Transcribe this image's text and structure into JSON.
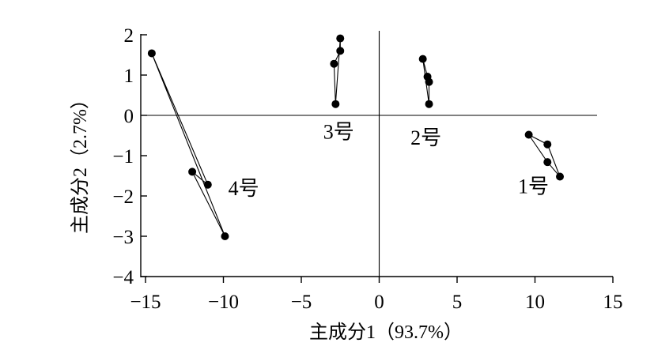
{
  "chart_data": {
    "type": "scatter",
    "xlabel": "主成分1（93.7%）",
    "ylabel": "主成分2（2.7%）",
    "xlim": [
      -16,
      15
    ],
    "ylim": [
      -4,
      2
    ],
    "xticks": [
      -15,
      -10,
      -5,
      0,
      5,
      10,
      15
    ],
    "yticks": [
      2,
      1,
      0,
      -1,
      -2,
      -3,
      -4
    ],
    "xtick_labels": [
      "−15",
      "−10",
      "−5",
      "0",
      "5",
      "10",
      "15"
    ],
    "ytick_labels": [
      "2",
      "1",
      "0",
      "−1",
      "−2",
      "−3",
      "−4"
    ],
    "zero_lines": true,
    "grid": false,
    "groups": [
      {
        "label": "1号",
        "label_pos": [
          9.9,
          -1.75
        ],
        "points": [
          [
            9.6,
            -0.48
          ],
          [
            10.8,
            -0.72
          ],
          [
            11.6,
            -1.52
          ],
          [
            10.8,
            -1.16
          ]
        ]
      },
      {
        "label": "2号",
        "label_pos": [
          3.0,
          -0.55
        ],
        "points": [
          [
            2.8,
            1.4
          ],
          [
            3.1,
            0.96
          ],
          [
            3.2,
            0.83
          ],
          [
            3.2,
            0.28
          ]
        ]
      },
      {
        "label": "3号",
        "label_pos": [
          -2.6,
          -0.4
        ],
        "points": [
          [
            -2.5,
            1.91
          ],
          [
            -2.5,
            1.6
          ],
          [
            -2.9,
            1.28
          ],
          [
            -2.8,
            0.28
          ]
        ]
      },
      {
        "label": "4号",
        "label_pos": [
          -8.7,
          -1.8
        ],
        "points": [
          [
            -14.6,
            1.54
          ],
          [
            -11.0,
            -1.72
          ],
          [
            -12.0,
            -1.4
          ],
          [
            -9.9,
            -3.0
          ]
        ]
      }
    ]
  }
}
